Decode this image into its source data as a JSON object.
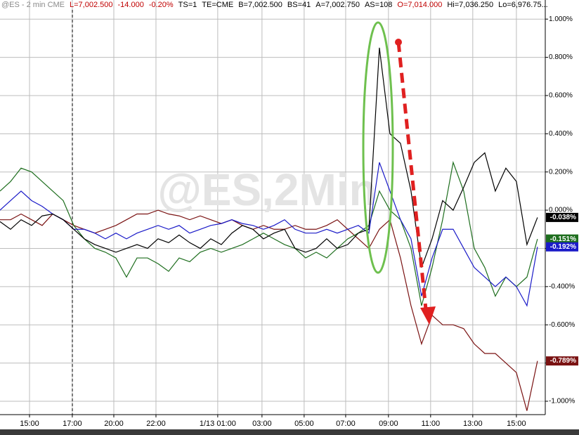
{
  "chart_data": {
    "type": "line",
    "header": [
      {
        "text": "@ES - 2 min  CME",
        "color": "#8a8a8a"
      },
      {
        "text": "L=7,002.500",
        "color": "#c00000"
      },
      {
        "text": "-14.000",
        "color": "#c00000"
      },
      {
        "text": "-0.20%",
        "color": "#c00000"
      },
      {
        "text": "TS=1",
        "color": "#000000"
      },
      {
        "text": "TE=CME",
        "color": "#000000"
      },
      {
        "text": "B=7,002.500",
        "color": "#000000"
      },
      {
        "text": "BS=41",
        "color": "#000000"
      },
      {
        "text": "A=7,002.750",
        "color": "#000000"
      },
      {
        "text": "AS=108",
        "color": "#000000"
      },
      {
        "text": "O=7,014.000",
        "color": "#c00000"
      },
      {
        "text": "Hi=7,036.250",
        "color": "#000000"
      },
      {
        "text": "Lo=6,976.75...",
        "color": "#000000"
      }
    ],
    "watermark": "@ES,2Min",
    "x": [
      0,
      0.5,
      1,
      1.5,
      2,
      2.5,
      3,
      3.5,
      4,
      4.5,
      5,
      5.5,
      6,
      6.5,
      7,
      7.5,
      8,
      8.5,
      9,
      9.5,
      10,
      10.5,
      11,
      11.5,
      12,
      12.5,
      13,
      13.5,
      14,
      14.5,
      15,
      15.5,
      16,
      16.5,
      17,
      17.5,
      18,
      18.5,
      19,
      19.5,
      20,
      20.5,
      21,
      21.5,
      22,
      22.5,
      23,
      23.5,
      24,
      24.5,
      25,
      25.5
    ],
    "xlim": [
      0,
      25.87
    ],
    "xticks": [
      {
        "value": 1.4,
        "label": "15:00"
      },
      {
        "value": 3.43,
        "label": "17:00"
      },
      {
        "value": 5.4,
        "label": "20:00"
      },
      {
        "value": 7.4,
        "label": "22:00"
      },
      {
        "value": 10.33,
        "label": "1/13  01:00"
      },
      {
        "value": 12.43,
        "label": "03:00"
      },
      {
        "value": 14.43,
        "label": "05:00"
      },
      {
        "value": 16.4,
        "label": "07:00"
      },
      {
        "value": 18.43,
        "label": "09:00"
      },
      {
        "value": 20.43,
        "label": "11:00"
      },
      {
        "value": 22.43,
        "label": "13:00"
      },
      {
        "value": 24.5,
        "label": "15:00"
      }
    ],
    "ylim": [
      -1.07,
      1.1
    ],
    "yticks": [
      {
        "value": 1,
        "label": "1.000%"
      },
      {
        "value": 0.8,
        "label": "0.800%"
      },
      {
        "value": 0.6,
        "label": "0.600%"
      },
      {
        "value": 0.4,
        "label": "0.400%"
      },
      {
        "value": 0.2,
        "label": "0.200%"
      },
      {
        "value": 0,
        "label": "0.000%"
      },
      {
        "value": -0.2,
        "label": "-0.200%"
      },
      {
        "value": -0.4,
        "label": "-0.400%"
      },
      {
        "value": -0.6,
        "label": "-0.600%"
      },
      {
        "value": -0.8,
        "label": "-0.800%"
      },
      {
        "value": -1,
        "label": "-1.000%"
      }
    ],
    "grid": true,
    "series": [
      {
        "color": "#7a1212",
        "values": [
          -0.05,
          -0.05,
          -0.02,
          -0.05,
          -0.08,
          -0.02,
          -0.05,
          -0.08,
          -0.1,
          -0.12,
          -0.1,
          -0.08,
          -0.05,
          -0.02,
          -0.02,
          0.0,
          -0.02,
          -0.03,
          -0.05,
          -0.03,
          -0.05,
          -0.07,
          -0.05,
          -0.08,
          -0.1,
          -0.08,
          -0.1,
          -0.1,
          -0.08,
          -0.1,
          -0.1,
          -0.08,
          -0.05,
          -0.1,
          -0.15,
          -0.2,
          -0.1,
          -0.05,
          -0.25,
          -0.5,
          -0.7,
          -0.55,
          -0.6,
          -0.6,
          -0.62,
          -0.7,
          -0.75,
          -0.75,
          -0.8,
          -0.85,
          -1.05,
          -0.789
        ],
        "value_labels": [
          null,
          null,
          null,
          null,
          null,
          null,
          null,
          null,
          null,
          null,
          null,
          null,
          null,
          null,
          null,
          null,
          null,
          null,
          null,
          null,
          null,
          null,
          null,
          null,
          null,
          null,
          null,
          null,
          null,
          null,
          null,
          null,
          null,
          null,
          null,
          null,
          null,
          null,
          null,
          null,
          null,
          null,
          null,
          null,
          null,
          null,
          null,
          null,
          null,
          null,
          null,
          "-0.789%"
        ]
      },
      {
        "color": "#1e6e1e",
        "values": [
          0.1,
          0.15,
          0.22,
          0.2,
          0.15,
          0.1,
          0.05,
          -0.08,
          -0.15,
          -0.2,
          -0.22,
          -0.25,
          -0.35,
          -0.25,
          -0.25,
          -0.28,
          -0.32,
          -0.25,
          -0.27,
          -0.22,
          -0.2,
          -0.22,
          -0.2,
          -0.18,
          -0.15,
          -0.12,
          -0.15,
          -0.18,
          -0.2,
          -0.25,
          -0.22,
          -0.25,
          -0.2,
          -0.15,
          -0.12,
          -0.08,
          0.1,
          0.0,
          -0.05,
          -0.2,
          -0.5,
          -0.3,
          -0.05,
          0.25,
          0.1,
          -0.2,
          -0.3,
          -0.45,
          -0.35,
          -0.4,
          -0.35,
          -0.151
        ],
        "value_labels": [
          null,
          null,
          null,
          null,
          null,
          null,
          null,
          null,
          null,
          null,
          null,
          null,
          null,
          null,
          null,
          null,
          null,
          null,
          null,
          null,
          null,
          null,
          null,
          null,
          null,
          null,
          null,
          null,
          null,
          null,
          null,
          null,
          null,
          null,
          null,
          null,
          null,
          null,
          null,
          null,
          null,
          null,
          null,
          null,
          null,
          null,
          null,
          null,
          null,
          null,
          null,
          "-0.151%"
        ]
      },
      {
        "color": "#1a1ac8",
        "values": [
          0.0,
          0.05,
          0.1,
          0.05,
          0.02,
          -0.02,
          -0.05,
          -0.1,
          -0.1,
          -0.12,
          -0.15,
          -0.12,
          -0.15,
          -0.12,
          -0.1,
          -0.08,
          -0.1,
          -0.08,
          -0.12,
          -0.1,
          -0.08,
          -0.07,
          -0.05,
          -0.07,
          -0.08,
          -0.1,
          -0.08,
          -0.05,
          -0.1,
          -0.12,
          -0.12,
          -0.1,
          -0.12,
          -0.1,
          -0.08,
          -0.12,
          0.25,
          0.1,
          -0.05,
          -0.15,
          -0.45,
          -0.25,
          -0.1,
          -0.1,
          -0.2,
          -0.3,
          -0.35,
          -0.4,
          -0.35,
          -0.4,
          -0.5,
          -0.192
        ],
        "value_labels": [
          null,
          null,
          null,
          null,
          null,
          null,
          null,
          null,
          null,
          null,
          null,
          null,
          null,
          null,
          null,
          null,
          null,
          null,
          null,
          null,
          null,
          null,
          null,
          null,
          null,
          null,
          null,
          null,
          null,
          null,
          null,
          null,
          null,
          null,
          null,
          null,
          null,
          null,
          null,
          null,
          null,
          null,
          null,
          null,
          null,
          null,
          null,
          null,
          null,
          null,
          null,
          "-0.192%"
        ]
      },
      {
        "color": "#000000",
        "values": [
          -0.06,
          -0.1,
          -0.05,
          -0.08,
          -0.03,
          -0.02,
          -0.05,
          -0.1,
          -0.15,
          -0.18,
          -0.2,
          -0.22,
          -0.2,
          -0.18,
          -0.2,
          -0.15,
          -0.17,
          -0.13,
          -0.17,
          -0.2,
          -0.15,
          -0.18,
          -0.12,
          -0.08,
          -0.1,
          -0.15,
          -0.12,
          -0.1,
          -0.2,
          -0.22,
          -0.2,
          -0.15,
          -0.2,
          -0.18,
          -0.12,
          -0.1,
          0.85,
          0.4,
          0.35,
          0.1,
          -0.3,
          -0.15,
          0.05,
          0.0,
          0.12,
          0.25,
          0.3,
          0.1,
          0.22,
          0.15,
          -0.18,
          -0.038
        ],
        "value_labels": [
          null,
          null,
          null,
          null,
          null,
          null,
          null,
          null,
          null,
          null,
          null,
          null,
          null,
          null,
          null,
          null,
          null,
          null,
          null,
          null,
          null,
          null,
          null,
          null,
          null,
          null,
          null,
          null,
          null,
          null,
          null,
          null,
          null,
          null,
          null,
          null,
          null,
          null,
          null,
          null,
          null,
          null,
          null,
          null,
          null,
          null,
          null,
          null,
          null,
          null,
          null,
          "-0.038%"
        ]
      }
    ]
  }
}
